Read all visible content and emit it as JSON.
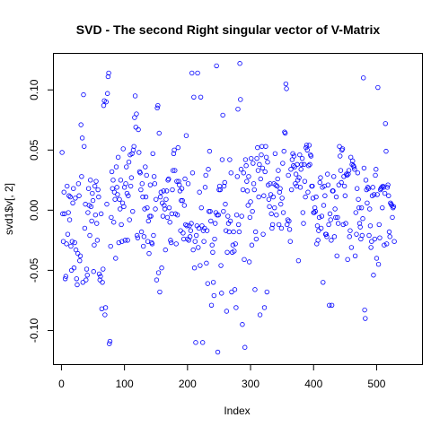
{
  "chart_data": {
    "type": "scatter",
    "title": "SVD - The second Right singular vector of V-Matrix",
    "xlabel": "Index",
    "ylabel": "svd1$v[, 2]",
    "xlim": [
      -12,
      572
    ],
    "ylim": [
      -0.128,
      0.13
    ],
    "xticks": [
      "0",
      "100",
      "200",
      "300",
      "400",
      "500"
    ],
    "yticks": [
      "-0.10",
      "-0.05",
      "0.00",
      "0.05",
      "0.10"
    ],
    "point_color": "#0000ff",
    "point_style": "open circle",
    "grid": false,
    "legend": "none",
    "n_points": 560,
    "y": [
      0.048,
      -0.003,
      -0.026,
      0.015,
      -0.003,
      -0.057,
      -0.055,
      -0.028,
      0.02,
      -0.02,
      -0.002,
      0.012,
      -0.008,
      0.011,
      -0.03,
      -0.05,
      -0.026,
      0.006,
      0.018,
      -0.048,
      -0.027,
      0.01,
      -0.033,
      -0.057,
      -0.062,
      -0.036,
      0.022,
      0.012,
      -0.042,
      -0.038,
      0.071,
      0.028,
      0.06,
      -0.06,
      0.096,
      0.053,
      -0.015,
      0.005,
      -0.058,
      -0.049,
      -0.054,
      -0.002,
      0.018,
      0.004,
      -0.021,
      0.025,
      0.003,
      -0.009,
      0.014,
      0.008,
      -0.051,
      -0.029,
      0.02,
      -0.004,
      0.024,
      -0.011,
      -0.025,
      0.017,
      0.011,
      -0.053,
      -0.058,
      -0.055,
      -0.003,
      -0.082,
      -0.06,
      -0.049,
      0.087,
      0.091,
      -0.087,
      -0.081,
      0.09,
      0.005,
      0.097,
      0.111,
      0.114,
      -0.111,
      -0.109,
      -0.03,
      -0.006,
      0.032,
      0.018,
      0.025,
      -0.01,
      0.015,
      0.009,
      -0.04,
      0.036,
      0.019,
      0.013,
      0.044,
      -0.027,
      0.009,
      0.001,
      0.025,
      -0.012,
      -0.026,
      0.006,
      0.051,
      0.003,
      0.019,
      -0.025,
      0.022,
      0.036,
      0.014,
      -0.025,
      0.012,
      0.04,
      -0.008,
      0.046,
      0.02,
      0.027,
      0.047,
      -0.001,
      0.05,
      0.053,
      0.077,
      0.095,
      0.069,
      0.08,
      -0.021,
      -0.023,
      0.067,
      0.048,
      0.032,
      0.031,
      0.017,
      -0.018,
      0.022,
      0.011,
      -0.03,
      -0.022,
      0.001,
      0.036,
      0.011,
      0.029,
      0.002,
      -0.026,
      -0.009,
      -0.036,
      -0.005,
      0.021,
      -0.005,
      -0.027,
      -0.028,
      0.047,
      -0.021,
      0.028,
      0.022,
      0.001,
      0.009,
      -0.058,
      0.085,
      0.087,
      -0.052,
      0.064,
      -0.068,
      0.011,
      0.015,
      -0.048,
      0.006,
      -0.005,
      0.016,
      0.004,
      0.001,
      -0.033,
      0.009,
      0.016,
      -0.006,
      0.025,
      0.026,
      0.002,
      -0.01,
      -0.025,
      -0.027,
      -0.003,
      0.017,
      0.033,
      0.047,
      0.05,
      0.033,
      -0.003,
      -0.028,
      0.024,
      -0.004,
      0.052,
      0.024,
      0.021,
      0.016,
      -0.017,
      0.008,
      0.018,
      0.008,
      -0.019,
      -0.024,
      0.004,
      0.026,
      -0.012,
      0.062,
      -0.013,
      -0.024,
      0.022,
      -0.025,
      -0.013,
      -0.022,
      -0.017,
      -0.011,
      0.114,
      0.031,
      -0.033,
      0.094,
      -0.048,
      -0.026,
      -0.11,
      -0.021,
      -0.013,
      0.114,
      -0.031,
      -0.015,
      0.015,
      -0.046,
      0.094,
      0.002,
      -0.013,
      -0.11,
      -0.017,
      -0.026,
      -0.015,
      0.019,
      0.029,
      -0.044,
      -0.017,
      -0.061,
      0.034,
      -0.001,
      0.049,
      -0.001,
      -0.009,
      -0.079,
      -0.029,
      -0.035,
      -0.06,
      -0.071,
      -0.024,
      -0.011,
      -0.002,
      0.12,
      -0.004,
      -0.118,
      -0.004,
      0.017,
      0.02,
      0.017,
      -0.046,
      -0.069,
      0.042,
      0.079,
      -0.001,
      0.02,
      0.023,
      0.005,
      -0.017,
      -0.084,
      -0.035,
      -0.005,
      -0.011,
      -0.018,
      0.042,
      -0.009,
      0.031,
      -0.068,
      -0.035,
      -0.029,
      -0.018,
      -0.034,
      -0.066,
      -0.028,
      -0.081,
      -0.004,
      0.028,
      0.084,
      -0.012,
      -0.018,
      0.122,
      0.092,
      0.034,
      -0.005,
      -0.095,
      0.017,
      0.031,
      -0.041,
      -0.114,
      0.042,
      0.037,
      0.024,
      0.016,
      0.004,
      0.028,
      -0.043,
      -0.006,
      0.007,
      0.043,
      -0.029,
      -0.001,
      0.039,
      0.022,
      0.017,
      -0.066,
      -0.018,
      -0.024,
      0.043,
      0.052,
      0.033,
      0.011,
      0.038,
      -0.087,
      0.026,
      0.046,
      0.053,
      0.035,
      -0.02,
      0.012,
      -0.081,
      0.032,
      0.053,
      0.044,
      -0.068,
      0.04,
      0.021,
      0.009,
      0.003,
      0.022,
      0.013,
      -0.003,
      -0.015,
      -0.012,
      0.011,
      0.022,
      0.002,
      0.047,
      0.021,
      -0.004,
      0.02,
      0.026,
      0.033,
      -0.012,
      0.015,
      0.018,
      0.005,
      -0.015,
      0.01,
      0.039,
      -0.002,
      0.049,
      0.065,
      0.064,
      0.105,
      0.101,
      -0.012,
      -0.008,
      0.029,
      -0.009,
      -0.016,
      -0.026,
      0.034,
      0.017,
      0.042,
      0.047,
      0.037,
      0.045,
      0.036,
      0.022,
      0.03,
      0.02,
      0.038,
      0.025,
      -0.042,
      0.027,
      0.046,
      0.019,
      0.034,
      0.038,
      0.043,
      -0.002,
      -0.011,
      0.038,
      0.024,
      0.011,
      0.052,
      0.054,
      0.05,
      0.015,
      0.037,
      0.054,
      0.038,
      0.046,
      0.045,
      0.02,
      0.02,
      0.01,
      -0.002,
      -0.002,
      0.002,
      -0.001,
      0.011,
      -0.028,
      -0.013,
      -0.025,
      -0.017,
      -0.006,
      0.023,
      0.027,
      -0.015,
      -0.005,
      0.019,
      -0.06,
      0.004,
      0.02,
      0.012,
      -0.02,
      -0.02,
      -0.022,
      0.03,
      0.021,
      -0.012,
      -0.079,
      -0.003,
      -0.008,
      -0.025,
      -0.079,
      0.016,
      0.016,
      0.028,
      -0.022,
      0.001,
      -0.006,
      0.011,
      -0.038,
      -0.006,
      -0.011,
      0.021,
      0.053,
      0.045,
      0.033,
      0.023,
      0.05,
      0.051,
      -0.012,
      0.028,
      0.02,
      0.012,
      -0.011,
      0.03,
      0.029,
      -0.041,
      0.03,
      0.033,
      -0.022,
      -0.017,
      0.044,
      -0.031,
      0.038,
      0.041,
      0.037,
      0.036,
      0.034,
      -0.038,
      -0.002,
      -0.02,
      0.018,
      0.031,
      0.009,
      0.002,
      -0.011,
      -0.014,
      -0.024,
      0.002,
      -0.021,
      -0.007,
      0.11,
      0.035,
      -0.083,
      -0.09,
      0.025,
      0.017,
      0.006,
      0.019,
      0.018,
      -0.021,
      0.001,
      -0.013,
      -0.031,
      -0.026,
      0.012,
      0.019,
      -0.054,
      0.013,
      -0.024,
      0.029,
      0.034,
      -0.04,
      0.013,
      0.102,
      -0.045,
      -0.012,
      -0.023,
      0.017,
      0.018,
      0.019,
      0.002,
      0.02,
      0.019,
      -0.029,
      0.014,
      0.072,
      0.049,
      -0.028,
      0.019,
      0.021,
      0.012,
      -0.018,
      -0.022,
      0.006,
      0.005,
      0.004,
      -0.006,
      0.002,
      0.003,
      -0.026
    ]
  }
}
